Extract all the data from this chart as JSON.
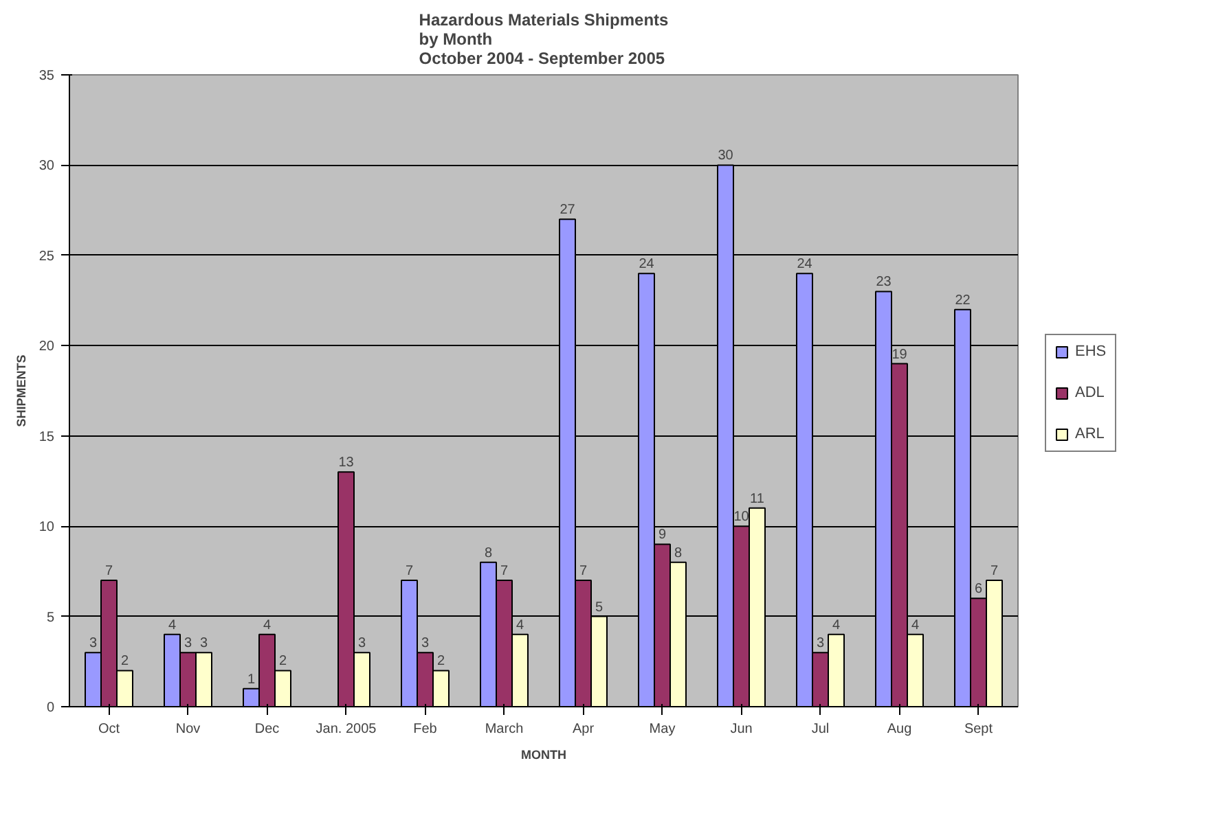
{
  "chart_data": {
    "type": "bar",
    "title": "Hazardous Materials Shipments\nby Month\nOctober 2004 - September 2005",
    "xlabel": "MONTH",
    "ylabel": "SHIPMENTS",
    "categories": [
      "Oct",
      "Nov",
      "Dec",
      "Jan. 2005",
      "Feb",
      "March",
      "Apr",
      "May",
      "Jun",
      "Jul",
      "Aug",
      "Sept"
    ],
    "series": [
      {
        "name": "EHS",
        "color": "#9999ff",
        "values": [
          3,
          4,
          1,
          null,
          7,
          8,
          27,
          24,
          30,
          24,
          23,
          22
        ]
      },
      {
        "name": "ADL",
        "color": "#993366",
        "values": [
          7,
          3,
          4,
          13,
          3,
          7,
          7,
          9,
          10,
          3,
          19,
          6
        ]
      },
      {
        "name": "ARL",
        "color": "#ffffcc",
        "values": [
          2,
          3,
          2,
          3,
          2,
          4,
          5,
          8,
          11,
          4,
          4,
          7
        ]
      }
    ],
    "ylim": [
      0,
      35
    ],
    "yticks": [
      0,
      5,
      10,
      15,
      20,
      25,
      30,
      35
    ],
    "grid": "y",
    "legend": "right",
    "data_labels": true
  }
}
